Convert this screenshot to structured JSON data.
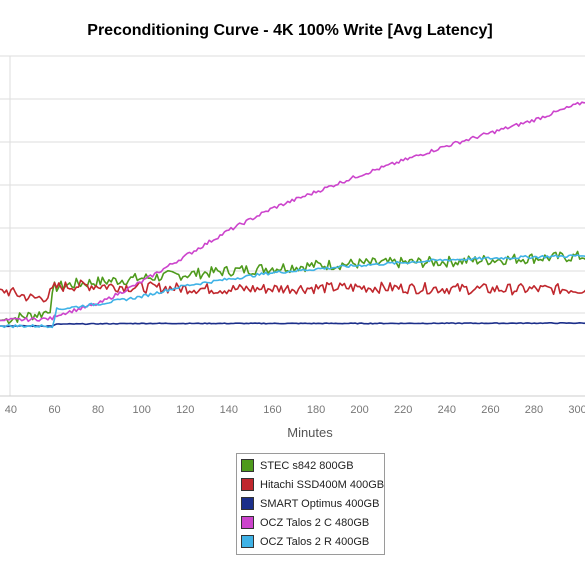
{
  "chart_data": {
    "type": "line",
    "title": "Preconditioning Curve - 4K 100% Write [Avg Latency]",
    "xlabel": "Minutes",
    "ylabel": "",
    "x_ticks": [
      "40",
      "60",
      "80",
      "100",
      "120",
      "140",
      "160",
      "180",
      "200",
      "220",
      "240",
      "260",
      "280",
      "300"
    ],
    "xlim": [
      35,
      308
    ],
    "ylim": [
      0,
      7
    ],
    "y_unlabeled_gridlines": [
      0,
      1,
      2,
      3,
      4,
      5,
      6,
      7
    ],
    "grid": true,
    "legend_position": "bottom",
    "series": [
      {
        "name": "STEC s842 800GB",
        "color": "#4e9a1c",
        "x": [
          35,
          55,
          58,
          60,
          70,
          80,
          100,
          120,
          140,
          160,
          180,
          200,
          220,
          240,
          260,
          280,
          308
        ],
        "y": [
          0.15,
          0.35,
          0.5,
          1.05,
          1.15,
          1.2,
          1.3,
          1.4,
          1.5,
          1.58,
          1.65,
          1.7,
          1.72,
          1.75,
          1.8,
          1.85,
          1.9
        ],
        "noise": 0.15
      },
      {
        "name": "Hitachi SSD400M 400GB",
        "color": "#c0272d",
        "x": [
          35,
          50,
          57,
          60,
          70,
          80,
          100,
          140,
          200,
          260,
          308
        ],
        "y": [
          1.0,
          0.75,
          0.8,
          1.05,
          1.1,
          1.1,
          1.05,
          1.0,
          1.05,
          1.0,
          1.0
        ],
        "noise": 0.15
      },
      {
        "name": "SMART Optimus 400GB",
        "color": "#1c2f8a",
        "x": [
          35,
          59,
          61,
          100,
          200,
          308
        ],
        "y": [
          0.0,
          0.0,
          0.05,
          0.07,
          0.07,
          0.08
        ],
        "noise": 0.01
      },
      {
        "name": "OCZ Talos 2 C 480GB",
        "color": "#cc44cc",
        "x": [
          35,
          59,
          61,
          80,
          100,
          120,
          140,
          160,
          200,
          240,
          280,
          308
        ],
        "y": [
          0.15,
          0.2,
          0.3,
          0.6,
          1.2,
          1.9,
          2.6,
          3.2,
          4.1,
          4.9,
          5.6,
          6.2
        ],
        "noise": 0.05
      },
      {
        "name": "OCZ Talos 2 R 400GB",
        "color": "#3fb2e6",
        "x": [
          35,
          59,
          61,
          80,
          100,
          120,
          160,
          200,
          240,
          280,
          308
        ],
        "y": [
          0.0,
          0.0,
          0.45,
          0.6,
          0.8,
          1.1,
          1.45,
          1.65,
          1.8,
          1.88,
          1.92
        ],
        "noise": 0.04
      }
    ]
  }
}
